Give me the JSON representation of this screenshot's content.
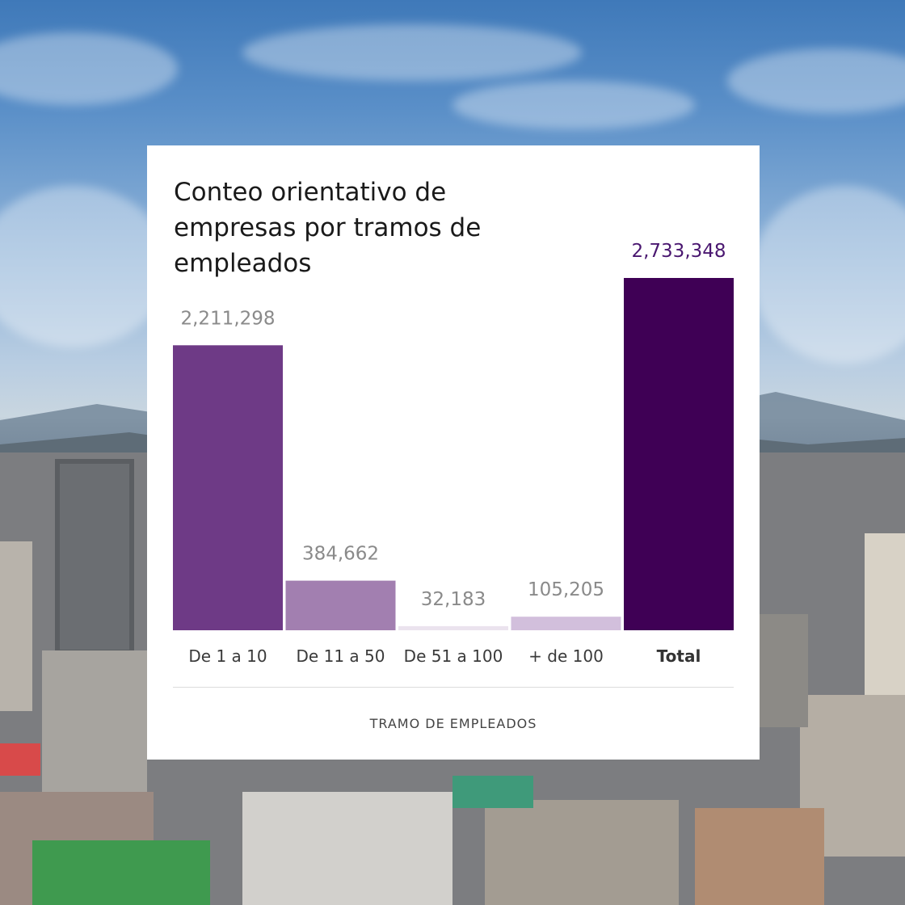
{
  "chart_data": {
    "type": "bar",
    "title": "Conteo orientativo de empresas por tramos de empleados",
    "xlabel": "TRAMO DE EMPLEADOS",
    "ylabel": "",
    "categories": [
      "De 1 a 10",
      "De 11 a 50",
      "De 51 a 100",
      "+ de 100",
      "Total"
    ],
    "values": [
      2211298,
      384662,
      32183,
      105205,
      2733348
    ],
    "value_labels": [
      "2,211,298",
      "384,662",
      "32,183",
      "105,205",
      "2,733,348"
    ],
    "highlight_category": "Total",
    "grid": false,
    "legend": "none",
    "colors": [
      "#6e3a86",
      "#a27fb0",
      "#ebe3ee",
      "#d2bfdc",
      "#3f0055"
    ]
  }
}
